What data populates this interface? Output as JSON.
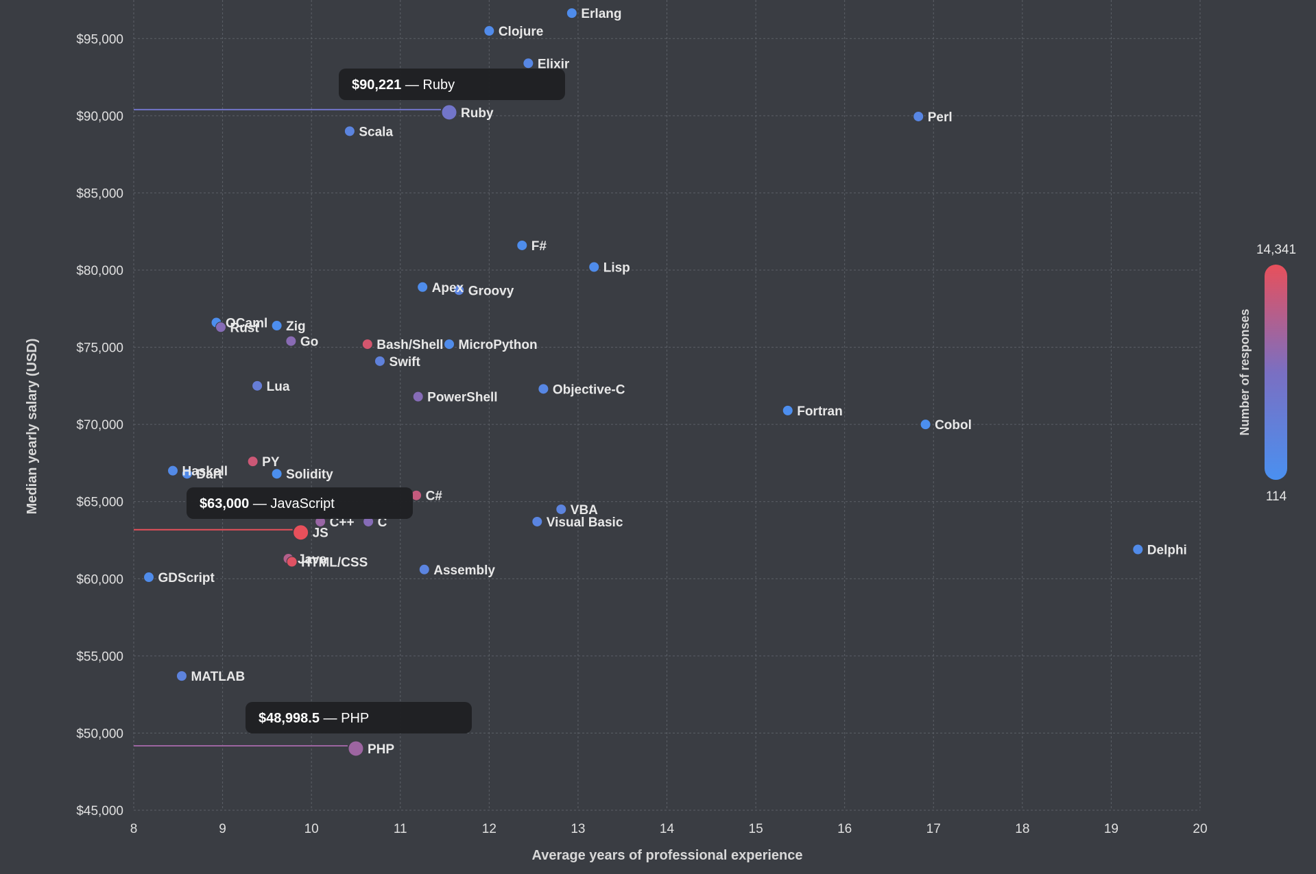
{
  "chart_data": {
    "type": "scatter",
    "xlabel": "Average years of professional experience",
    "ylabel": "Median yearly salary (USD)",
    "xlim": [
      8,
      20
    ],
    "ylim": [
      45000,
      97500
    ],
    "x_ticks": [
      8,
      9,
      10,
      11,
      12,
      13,
      14,
      15,
      16,
      17,
      18,
      19,
      20
    ],
    "y_ticks": [
      45000,
      50000,
      55000,
      60000,
      65000,
      70000,
      75000,
      80000,
      85000,
      90000,
      95000
    ],
    "y_tick_labels": [
      "$45,000",
      "$50,000",
      "$55,000",
      "$60,000",
      "$65,000",
      "$70,000",
      "$75,000",
      "$80,000",
      "$85,000",
      "$90,000",
      "$95,000"
    ],
    "grid": true,
    "color_scale": {
      "label": "Number of responses",
      "min_label": "114",
      "max_label": "14,341",
      "min": 114,
      "max": 14341,
      "colors": [
        "#4a90f0",
        "#7a6fc2",
        "#e8505b"
      ]
    },
    "points": [
      {
        "label": "Erlang",
        "x": 12.93,
        "y": 96650,
        "responses": 900
      },
      {
        "label": "Clojure",
        "x": 12.0,
        "y": 95500,
        "responses": 1100
      },
      {
        "label": "Elixir",
        "x": 12.44,
        "y": 93400,
        "responses": 2000
      },
      {
        "label": "Ruby",
        "x": 11.55,
        "y": 90221,
        "responses": 6000,
        "highlight": true
      },
      {
        "label": "Perl",
        "x": 16.83,
        "y": 89950,
        "responses": 2200
      },
      {
        "label": "Scala",
        "x": 10.43,
        "y": 89000,
        "responses": 2700
      },
      {
        "label": "F#",
        "x": 12.37,
        "y": 81600,
        "responses": 700
      },
      {
        "label": "Lisp",
        "x": 13.18,
        "y": 80200,
        "responses": 900
      },
      {
        "label": "Apex",
        "x": 11.25,
        "y": 78900,
        "responses": 800
      },
      {
        "label": "Groovy",
        "x": 11.66,
        "y": 78700,
        "responses": 2800
      },
      {
        "label": "OCaml",
        "x": 8.93,
        "y": 76600,
        "responses": 600
      },
      {
        "label": "Rust",
        "x": 8.98,
        "y": 76300,
        "responses": 8000
      },
      {
        "label": "Zig",
        "x": 9.61,
        "y": 76400,
        "responses": 500
      },
      {
        "label": "Go",
        "x": 9.77,
        "y": 75400,
        "responses": 8200
      },
      {
        "label": "Bash/Shell",
        "x": 10.63,
        "y": 75200,
        "responses": 13000
      },
      {
        "label": "MicroPython",
        "x": 11.55,
        "y": 75200,
        "responses": 1000
      },
      {
        "label": "Swift",
        "x": 10.77,
        "y": 74100,
        "responses": 3300
      },
      {
        "label": "Lua",
        "x": 9.39,
        "y": 72500,
        "responses": 4200
      },
      {
        "label": "Objective-C",
        "x": 12.61,
        "y": 72300,
        "responses": 2000
      },
      {
        "label": "PowerShell",
        "x": 11.2,
        "y": 71800,
        "responses": 8000
      },
      {
        "label": "Fortran",
        "x": 15.36,
        "y": 70900,
        "responses": 500
      },
      {
        "label": "Cobol",
        "x": 16.91,
        "y": 70000,
        "responses": 400
      },
      {
        "label": "PY",
        "x": 9.34,
        "y": 67600,
        "responses": 12500
      },
      {
        "label": "Haskell",
        "x": 8.44,
        "y": 67000,
        "responses": 1500
      },
      {
        "label": "Dart",
        "x": 8.6,
        "y": 66800,
        "responses": 1300
      },
      {
        "label": "Solidity",
        "x": 9.61,
        "y": 66800,
        "responses": 400
      },
      {
        "label": "C#",
        "x": 11.18,
        "y": 65400,
        "responses": 12000
      },
      {
        "label": "VBA",
        "x": 12.81,
        "y": 64500,
        "responses": 2800
      },
      {
        "label": "C++",
        "x": 10.1,
        "y": 63700,
        "responses": 9200
      },
      {
        "label": "C",
        "x": 10.64,
        "y": 63700,
        "responses": 8000
      },
      {
        "label": "Visual Basic",
        "x": 12.54,
        "y": 63700,
        "responses": 2500
      },
      {
        "label": "JS",
        "x": 9.88,
        "y": 63000,
        "responses": 14341,
        "highlight": true
      },
      {
        "label": "Delphi",
        "x": 19.3,
        "y": 61900,
        "responses": 1200
      },
      {
        "label": "Java",
        "x": 9.74,
        "y": 61300,
        "responses": 11000
      },
      {
        "label": "HTML/CSS",
        "x": 9.78,
        "y": 61100,
        "responses": 13800
      },
      {
        "label": "Assembly",
        "x": 11.27,
        "y": 60600,
        "responses": 2600
      },
      {
        "label": "GDScript",
        "x": 8.17,
        "y": 60100,
        "responses": 1000
      },
      {
        "label": "MATLAB",
        "x": 8.54,
        "y": 53700,
        "responses": 3000
      },
      {
        "label": "PHP",
        "x": 10.5,
        "y": 48998.5,
        "responses": 9500,
        "highlight": true
      }
    ],
    "tooltips": [
      {
        "value": "$90,221",
        "label": "Ruby"
      },
      {
        "value": "$63,000",
        "label": "JavaScript"
      },
      {
        "value": "$48,998.5",
        "label": "PHP"
      }
    ]
  }
}
